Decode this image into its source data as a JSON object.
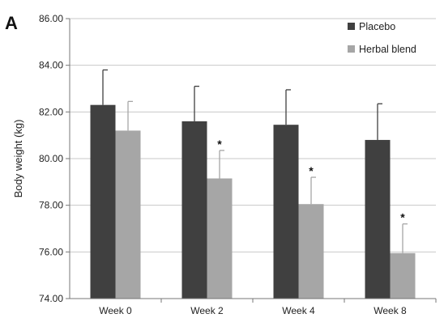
{
  "panel_label": "A",
  "chart_data": {
    "type": "bar",
    "title": "",
    "xlabel": "",
    "ylabel": "Body weight (kg)",
    "ylim": [
      74,
      86
    ],
    "yticks": [
      "74.00",
      "76.00",
      "78.00",
      "80.00",
      "82.00",
      "84.00",
      "86.00"
    ],
    "categories": [
      "Week 0",
      "Week 2",
      "Week 4",
      "Week 8"
    ],
    "grid": true,
    "legend_position": "top-right",
    "series": [
      {
        "name": "Placebo",
        "color": "#404040",
        "values": [
          82.3,
          81.6,
          81.45,
          80.8
        ],
        "error": [
          1.5,
          1.5,
          1.5,
          1.55
        ],
        "significance": [
          "",
          "",
          "",
          ""
        ]
      },
      {
        "name": "Herbal blend",
        "color": "#a6a6a6",
        "values": [
          81.2,
          79.15,
          78.05,
          75.95
        ],
        "error": [
          1.25,
          1.2,
          1.15,
          1.25
        ],
        "significance": [
          "",
          "*",
          "*",
          "*"
        ]
      }
    ]
  }
}
